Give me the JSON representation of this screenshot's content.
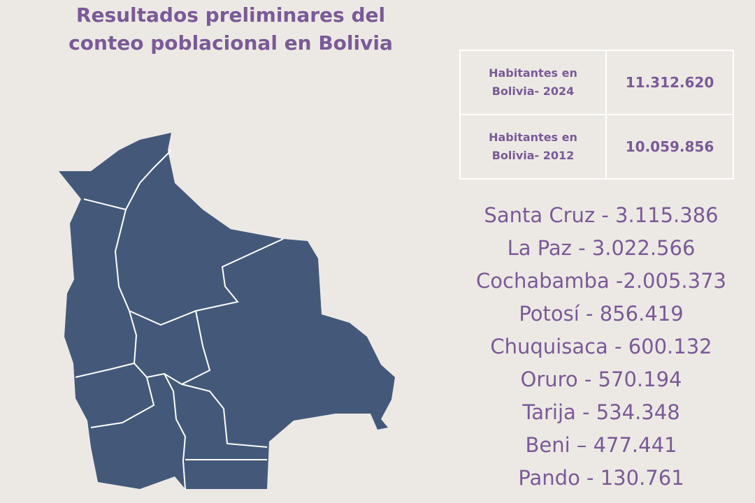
{
  "title": [
    "Resultados preliminares del",
    "conteo poblacional en Bolivia"
  ],
  "table": {
    "rows": [
      [
        [
          "Habitantes en",
          "Bolivia- 2024"
        ],
        "11.312.620"
      ],
      [
        [
          "Habitantes en",
          "Bolivia- 2012"
        ],
        "10.059.856"
      ]
    ]
  },
  "departments": [
    "Santa Cruz - 3.115.386",
    "La Paz - 3.022.566",
    "Cochabamba -2.005.373",
    "Potosí - 856.419",
    "Chuquisaca - 600.132",
    "Oruro - 570.194",
    "Tarija - 534.348",
    "Beni – 477.441",
    "Pando - 130.761"
  ]
}
